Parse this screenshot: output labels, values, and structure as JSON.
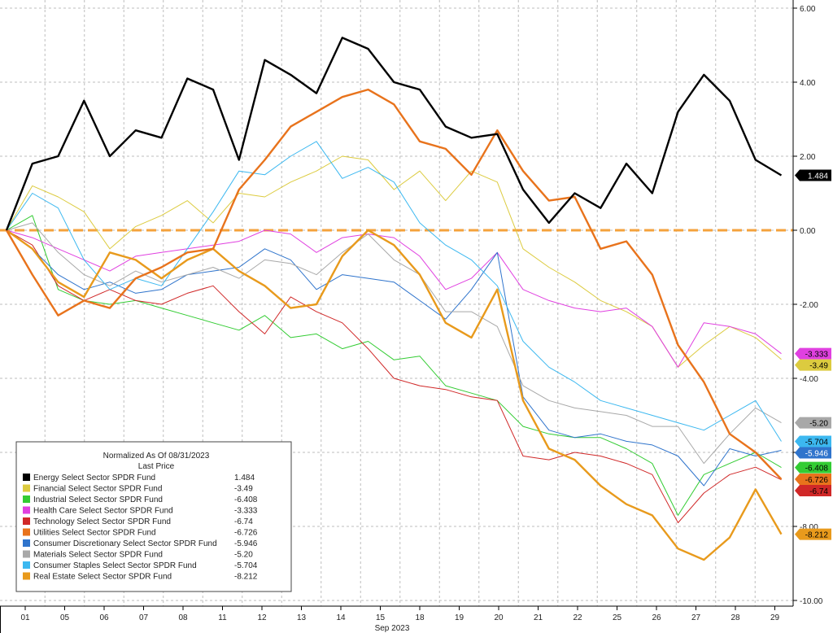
{
  "chart_data": {
    "type": "line",
    "legend_title": "Normalized As Of 08/31/2023",
    "legend_subtitle": "Last Price",
    "legend_position": "bottom-left",
    "xlabel": "Sep 2023",
    "x_tick_labels": [
      "01",
      "05",
      "06",
      "07",
      "08",
      "11",
      "12",
      "13",
      "14",
      "15",
      "18",
      "19",
      "20",
      "21",
      "22",
      "25",
      "26",
      "27",
      "28",
      "29"
    ],
    "y_axis_side": "right",
    "ylim": [
      -10,
      6
    ],
    "y_ticks": [
      6,
      4,
      2,
      0,
      -2,
      -4,
      -6,
      -8,
      -10
    ],
    "y_tick_labels": [
      "6.00",
      "4.00",
      "2.00",
      "0.00",
      "-2.00",
      "-4.00",
      "-6.00",
      "-8.00",
      "-10.00"
    ],
    "grid": true,
    "zero_line": {
      "value": 0,
      "color": "#f4a23c",
      "style": "dashed"
    },
    "series": [
      {
        "name": "Energy Select Sector SPDR Fund",
        "last": "1.484",
        "color": "#000000",
        "tag_text": "#ffffff",
        "width": 2.4,
        "values": [
          0.0,
          1.8,
          2.0,
          3.5,
          2.0,
          2.7,
          2.5,
          4.1,
          3.8,
          1.9,
          4.6,
          4.2,
          3.7,
          5.2,
          4.9,
          4.0,
          3.8,
          2.8,
          2.5,
          2.6,
          1.1,
          0.2,
          1.0,
          0.6,
          1.8,
          1.0,
          3.2,
          4.2,
          3.5,
          1.9,
          1.484
        ]
      },
      {
        "name": "Financial Select Sector SPDR Fund",
        "last": "-3.49",
        "color": "#dccb3f",
        "tag_text": "#000000",
        "width": 1,
        "values": [
          0.0,
          1.2,
          0.9,
          0.5,
          -0.5,
          0.1,
          0.4,
          0.8,
          0.2,
          1.0,
          0.9,
          1.3,
          1.6,
          2.0,
          1.9,
          1.1,
          1.6,
          0.8,
          1.6,
          1.3,
          -0.5,
          -1.0,
          -1.4,
          -1.9,
          -2.2,
          -2.6,
          -3.7,
          -3.1,
          -2.6,
          -2.9,
          -3.49
        ]
      },
      {
        "name": "Industrial Select Sector SPDR Fund",
        "last": "-6.408",
        "color": "#33cc33",
        "tag_text": "#000000",
        "width": 1,
        "values": [
          0.0,
          0.4,
          -1.6,
          -1.9,
          -2.0,
          -1.9,
          -2.1,
          -2.3,
          -2.5,
          -2.7,
          -2.3,
          -2.9,
          -2.8,
          -3.2,
          -3.0,
          -3.5,
          -3.4,
          -4.2,
          -4.4,
          -4.6,
          -5.3,
          -5.5,
          -5.6,
          -5.6,
          -5.9,
          -6.3,
          -7.7,
          -6.6,
          -6.3,
          -6.0,
          -6.408
        ]
      },
      {
        "name": "Health Care Select Sector SPDR Fund",
        "last": "-3.333",
        "color": "#e040e0",
        "tag_text": "#000000",
        "width": 1,
        "values": [
          0.0,
          -0.2,
          -0.5,
          -0.8,
          -1.1,
          -0.7,
          -0.6,
          -0.5,
          -0.4,
          -0.3,
          0.0,
          -0.1,
          -0.6,
          -0.2,
          -0.1,
          -0.2,
          -0.7,
          -1.6,
          -1.3,
          -0.6,
          -1.6,
          -1.9,
          -2.1,
          -2.2,
          -2.1,
          -2.6,
          -3.7,
          -2.5,
          -2.6,
          -2.8,
          -3.333
        ]
      },
      {
        "name": "Technology Select Sector SPDR Fund",
        "last": "-6.74",
        "color": "#d02828",
        "tag_text": "#000000",
        "width": 1,
        "values": [
          0.0,
          -0.4,
          -1.5,
          -1.9,
          -1.6,
          -1.9,
          -2.0,
          -1.7,
          -1.5,
          -2.2,
          -2.8,
          -1.8,
          -2.2,
          -2.5,
          -3.2,
          -4.0,
          -4.2,
          -4.3,
          -4.5,
          -4.6,
          -6.1,
          -6.2,
          -6.0,
          -6.1,
          -6.3,
          -6.6,
          -7.9,
          -7.1,
          -6.6,
          -6.4,
          -6.74
        ]
      },
      {
        "name": "Utilities Select Sector SPDR Fund",
        "last": "-6.726",
        "color": "#e8731c",
        "tag_text": "#000000",
        "width": 2.4,
        "values": [
          0.0,
          -1.2,
          -2.3,
          -1.9,
          -2.1,
          -1.3,
          -1.0,
          -0.6,
          -0.5,
          1.1,
          1.9,
          2.8,
          3.2,
          3.6,
          3.8,
          3.4,
          2.4,
          2.2,
          1.5,
          2.7,
          1.6,
          0.8,
          0.9,
          -0.5,
          -0.3,
          -1.2,
          -3.1,
          -4.1,
          -5.5,
          -6.0,
          -6.726
        ]
      },
      {
        "name": "Consumer Discretionary Select Sector SPDR Fund",
        "last": "-5.946",
        "color": "#2f74cc",
        "tag_text": "#ffffff",
        "width": 1,
        "values": [
          0.0,
          -0.5,
          -1.2,
          -1.6,
          -1.4,
          -1.7,
          -1.6,
          -1.2,
          -1.1,
          -1.0,
          -0.5,
          -0.8,
          -1.6,
          -1.2,
          -1.3,
          -1.4,
          -1.9,
          -2.4,
          -1.6,
          -0.6,
          -4.5,
          -5.4,
          -5.6,
          -5.5,
          -5.7,
          -5.8,
          -6.1,
          -6.9,
          -5.9,
          -6.1,
          -5.946
        ]
      },
      {
        "name": "Materials Select Sector SPDR Fund",
        "last": "-5.20",
        "color": "#a8a8a8",
        "tag_text": "#000000",
        "width": 1,
        "values": [
          0.0,
          0.2,
          -0.6,
          -1.2,
          -1.5,
          -1.1,
          -1.4,
          -1.2,
          -1.0,
          -1.3,
          -0.8,
          -0.9,
          -1.2,
          -0.6,
          -0.1,
          -0.8,
          -1.2,
          -2.2,
          -2.2,
          -2.6,
          -4.2,
          -4.6,
          -4.8,
          -4.9,
          -5.0,
          -5.3,
          -5.3,
          -6.3,
          -5.5,
          -4.8,
          -5.2
        ]
      },
      {
        "name": "Consumer Staples Select Sector SPDR Fund",
        "last": "-5.704",
        "color": "#3cb8f0",
        "tag_text": "#000000",
        "width": 1,
        "values": [
          0.0,
          1.0,
          0.6,
          -0.8,
          -1.6,
          -1.3,
          -1.5,
          -0.5,
          0.5,
          1.6,
          1.5,
          2.0,
          2.4,
          1.4,
          1.7,
          1.3,
          0.2,
          -0.4,
          -0.8,
          -1.5,
          -3.0,
          -3.7,
          -4.1,
          -4.6,
          -4.8,
          -5.0,
          -5.2,
          -5.4,
          -5.0,
          -4.6,
          -5.704
        ]
      },
      {
        "name": "Real Estate Select Sector SPDR Fund",
        "last": "-8.212",
        "color": "#e89a1c",
        "tag_text": "#000000",
        "width": 2.4,
        "values": [
          0.0,
          -0.5,
          -1.4,
          -1.8,
          -0.6,
          -0.8,
          -1.3,
          -0.8,
          -0.5,
          -1.1,
          -1.5,
          -2.1,
          -2.0,
          -0.7,
          0.0,
          -0.4,
          -1.2,
          -2.5,
          -2.9,
          -1.6,
          -4.6,
          -5.9,
          -6.2,
          -6.9,
          -7.4,
          -7.7,
          -8.6,
          -8.9,
          -8.3,
          -7.0,
          -8.212
        ]
      }
    ]
  }
}
